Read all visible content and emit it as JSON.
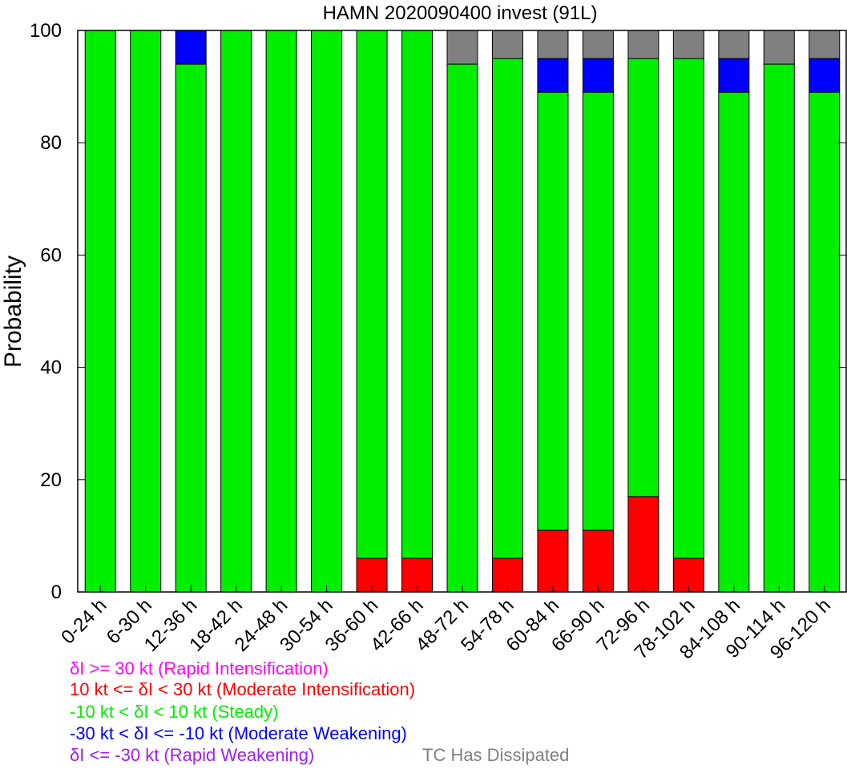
{
  "chart_data": {
    "type": "bar",
    "stacked": true,
    "title": "HAMN 2020090400 invest (91L)",
    "xlabel": "",
    "ylabel": "Probability",
    "ylim": [
      0,
      100
    ],
    "yticks": [
      0,
      20,
      40,
      60,
      80,
      100
    ],
    "grid": false,
    "categories": [
      "0-24 h",
      "6-30 h",
      "12-36 h",
      "18-42 h",
      "24-48 h",
      "30-54 h",
      "36-60 h",
      "42-66 h",
      "48-72 h",
      "54-78 h",
      "60-84 h",
      "66-90 h",
      "72-96 h",
      "78-102 h",
      "84-108 h",
      "90-114 h",
      "96-120 h"
    ],
    "series": [
      {
        "name": "Rapid Intensification",
        "color": "#ff00ff",
        "values": [
          0,
          0,
          0,
          0,
          0,
          0,
          0,
          0,
          0,
          0,
          0,
          0,
          0,
          0,
          0,
          0,
          0
        ]
      },
      {
        "name": "Moderate Intensification",
        "color": "#ff0000",
        "values": [
          0,
          0,
          0,
          0,
          0,
          0,
          6,
          6,
          0,
          6,
          11,
          11,
          17,
          6,
          0,
          0,
          0
        ]
      },
      {
        "name": "Steady",
        "color": "#00ee00",
        "values": [
          100,
          100,
          94,
          100,
          100,
          100,
          94,
          94,
          94,
          89,
          78,
          78,
          78,
          89,
          89,
          94,
          89
        ]
      },
      {
        "name": "Moderate Weakening",
        "color": "#0000ff",
        "values": [
          0,
          0,
          6,
          0,
          0,
          0,
          0,
          0,
          0,
          0,
          6,
          6,
          0,
          0,
          6,
          0,
          6
        ]
      },
      {
        "name": "Rapid Weakening",
        "color": "#a020f0",
        "values": [
          0,
          0,
          0,
          0,
          0,
          0,
          0,
          0,
          0,
          0,
          0,
          0,
          0,
          0,
          0,
          0,
          0
        ]
      },
      {
        "name": "TC Has Dissipated",
        "color": "#808080",
        "values": [
          0,
          0,
          0,
          0,
          0,
          0,
          0,
          0,
          6,
          5,
          5,
          5,
          5,
          5,
          5,
          6,
          5
        ]
      }
    ]
  },
  "legend": {
    "ri": {
      "text": "δI >= 30 kt (Rapid Intensification)",
      "color": "#ff00ff"
    },
    "mi": {
      "text": "10 kt <= δI < 30 kt (Moderate Intensification)",
      "color": "#ff0000"
    },
    "steady": {
      "text": "-10 kt < δI < 10 kt (Steady)",
      "color": "#00ee00"
    },
    "mw": {
      "text": "-30 kt < δI <= -10 kt (Moderate Weakening)",
      "color": "#0000ff"
    },
    "rw": {
      "text": "δI <= -30 kt (Rapid Weakening)",
      "color": "#a020f0"
    },
    "dissipated": {
      "text": "TC Has Dissipated",
      "color": "#808080"
    }
  }
}
